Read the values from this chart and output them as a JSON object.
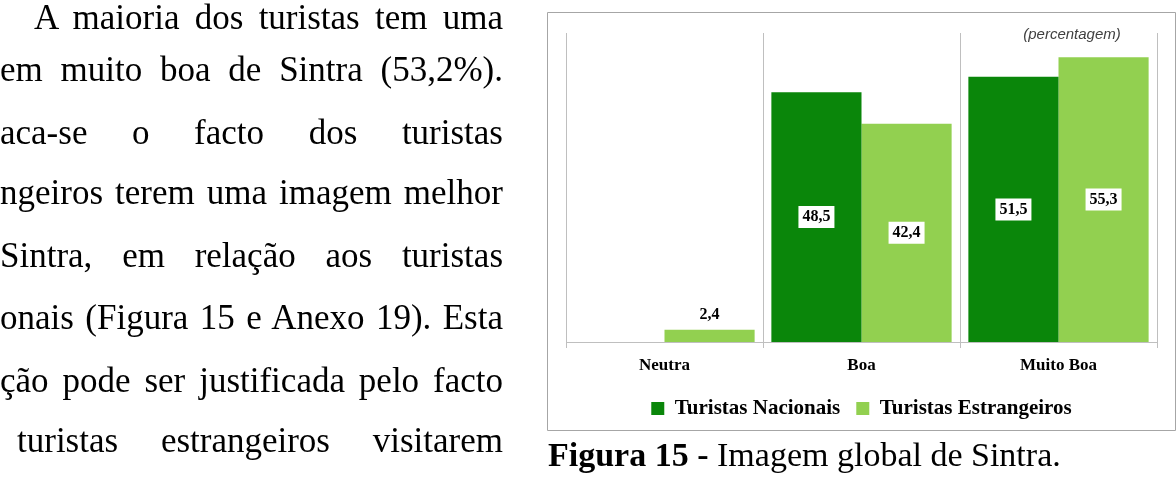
{
  "chart_data": {
    "type": "bar",
    "categories": [
      "Neutra",
      "Boa",
      "Muito Boa"
    ],
    "series": [
      {
        "name": "Turistas Nacionais",
        "color": "#0a860a",
        "values": [
          null,
          48.5,
          51.5
        ],
        "value_labels": [
          null,
          "48,5",
          "51,5"
        ]
      },
      {
        "name": "Turistas Estrangeiros",
        "color": "#92d050",
        "values": [
          2.4,
          42.4,
          55.3
        ],
        "value_labels": [
          "2,4",
          "42,4",
          "55,3"
        ]
      }
    ],
    "grid": "x",
    "legend": "bottom",
    "annotations": [
      "(percentagem)",
      "Figura 15 -",
      "Imagem global de Sintra.",
      "A maioria dos turistas tem uma",
      "em muito boa de Sintra (53,2%).",
      "aca-se o facto dos turistas",
      "ngeiros terem uma imagem melhor",
      "Sintra, em relação aos turistas",
      "onais (Figura 15 e Anexo 19). Esta",
      "ção pode ser justificada pelo facto",
      "turistas estrangeiros visitarem"
    ]
  }
}
